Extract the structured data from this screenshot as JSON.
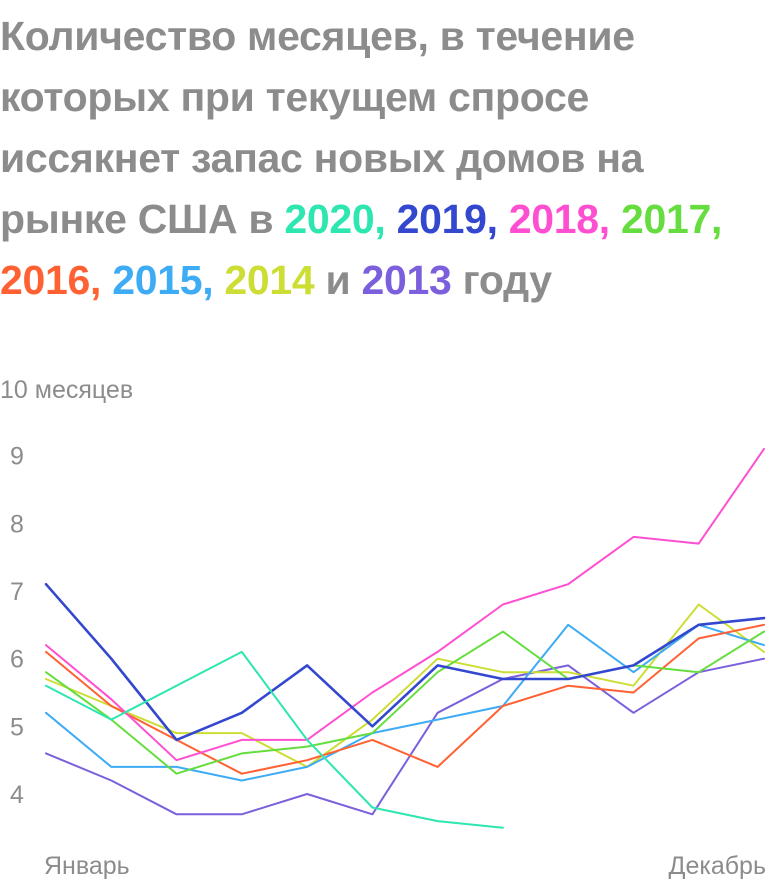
{
  "chart_data": {
    "type": "line",
    "title": {
      "lead": "Количество месяцев, в течение которых при текущем спросе иссякнет запас новых домов на рынке США",
      "connector_in": "в",
      "connector_and": "и",
      "tail": "году",
      "separator": ","
    },
    "ylabel_top": "10 месяцев",
    "y_ticks": [
      "9",
      "8",
      "7",
      "6",
      "5",
      "4"
    ],
    "x_labels": {
      "start": "Январь",
      "end": "Декабрь"
    },
    "ylim": [
      3.5,
      10
    ],
    "x": [
      1,
      2,
      3,
      4,
      5,
      6,
      7,
      8,
      9,
      10,
      11,
      12
    ],
    "grid": false,
    "series": [
      {
        "name": "2020",
        "color": "#2ee6b0",
        "values": [
          5.6,
          5.1,
          5.6,
          6.1,
          4.8,
          3.8,
          3.6,
          3.5,
          null,
          null,
          null,
          null
        ]
      },
      {
        "name": "2019",
        "color": "#3347cf",
        "values": [
          7.1,
          6.0,
          4.8,
          5.2,
          5.9,
          5.0,
          5.9,
          5.7,
          5.7,
          5.9,
          6.5,
          6.6
        ]
      },
      {
        "name": "2018",
        "color": "#ff4fd1",
        "values": [
          6.2,
          5.4,
          4.5,
          4.8,
          4.8,
          5.5,
          6.1,
          6.8,
          7.1,
          7.8,
          7.7,
          9.1
        ]
      },
      {
        "name": "2017",
        "color": "#66dd3f",
        "values": [
          5.8,
          5.1,
          4.3,
          4.6,
          4.7,
          4.9,
          5.8,
          6.4,
          5.7,
          5.9,
          5.8,
          6.4
        ]
      },
      {
        "name": "2016",
        "color": "#ff6133",
        "values": [
          6.1,
          5.3,
          4.8,
          4.3,
          4.5,
          4.8,
          4.4,
          5.3,
          5.6,
          5.5,
          6.3,
          6.5
        ]
      },
      {
        "name": "2015",
        "color": "#3eacf5",
        "values": [
          5.2,
          4.4,
          4.4,
          4.2,
          4.4,
          4.9,
          5.1,
          5.3,
          6.5,
          5.8,
          6.5,
          6.2
        ]
      },
      {
        "name": "2014",
        "color": "#ccdd33",
        "values": [
          5.7,
          5.3,
          4.9,
          4.9,
          4.4,
          5.1,
          6.0,
          5.8,
          5.8,
          5.6,
          6.8,
          6.1
        ]
      },
      {
        "name": "2013",
        "color": "#7b5fdc",
        "values": [
          4.6,
          4.2,
          3.7,
          3.7,
          4.0,
          3.7,
          5.2,
          5.7,
          5.9,
          5.2,
          5.8,
          6.0
        ]
      }
    ]
  }
}
